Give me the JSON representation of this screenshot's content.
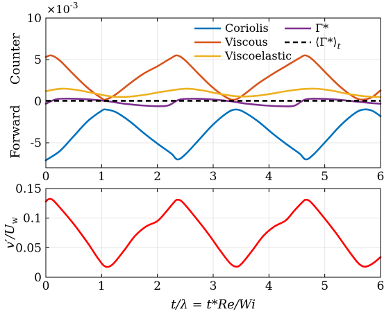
{
  "chart_data": [
    {
      "type": "line",
      "exponent_base": "×10",
      "exponent_power": "-3",
      "ylabel_top": "Counter",
      "ylabel_bottom": "Forward",
      "xlim": [
        0,
        6
      ],
      "ylim": [
        -8,
        10
      ],
      "xticks": [
        "0",
        "1",
        "2",
        "3",
        "4",
        "5",
        "6"
      ],
      "yticks": [
        {
          "v": 10,
          "t": "10"
        },
        {
          "v": 5,
          "t": "5"
        },
        {
          "v": 0,
          "t": "0"
        },
        {
          "v": -5,
          "t": "-5"
        }
      ],
      "grid": true,
      "legend_position": "top-right",
      "series": [
        {
          "name": "Coriolis",
          "color": "#0072BD",
          "style": "solid",
          "x": [
            0,
            0.25,
            0.5,
            0.75,
            1.0,
            1.07,
            1.25,
            1.5,
            1.75,
            2.0,
            2.25,
            2.36,
            2.5,
            2.75,
            3.0,
            3.25,
            3.4,
            3.55,
            3.8,
            4.05,
            4.3,
            4.55,
            4.66,
            4.8,
            5.05,
            5.3,
            5.55,
            5.7,
            5.85,
            6.0
          ],
          "y": [
            -7.1,
            -6.0,
            -4.2,
            -2.4,
            -1.15,
            -1.0,
            -1.3,
            -2.4,
            -3.8,
            -5.1,
            -6.3,
            -7.0,
            -6.4,
            -4.6,
            -2.8,
            -1.4,
            -1.0,
            -1.3,
            -2.4,
            -3.8,
            -5.1,
            -6.3,
            -7.0,
            -6.4,
            -4.6,
            -2.8,
            -1.4,
            -1.0,
            -1.15,
            -1.8
          ]
        },
        {
          "name": "Viscous",
          "color": "#D95319",
          "style": "solid",
          "x": [
            0,
            0.1,
            0.25,
            0.5,
            0.75,
            1.0,
            1.07,
            1.25,
            1.5,
            1.75,
            2.0,
            2.25,
            2.36,
            2.5,
            2.75,
            3.0,
            3.25,
            3.4,
            3.55,
            3.8,
            4.05,
            4.3,
            4.55,
            4.66,
            4.8,
            5.05,
            5.3,
            5.55,
            5.7,
            5.85,
            6.0
          ],
          "y": [
            5.3,
            5.5,
            4.9,
            3.2,
            1.6,
            0.35,
            0.2,
            0.8,
            2.1,
            3.3,
            4.2,
            5.2,
            5.5,
            4.9,
            3.2,
            1.6,
            0.4,
            0.2,
            0.8,
            2.1,
            3.2,
            4.2,
            5.2,
            5.5,
            4.9,
            3.2,
            1.6,
            0.4,
            0.2,
            0.5,
            1.3
          ]
        },
        {
          "name": "Viscoelastic",
          "color": "#EDB120",
          "style": "solid",
          "x": [
            0,
            0.2,
            0.35,
            0.6,
            0.9,
            1.2,
            1.5,
            1.8,
            2.1,
            2.5,
            2.8,
            3.1,
            3.4,
            3.7,
            4.0,
            4.3,
            4.6,
            4.85,
            5.1,
            5.4,
            5.7,
            6.0
          ],
          "y": [
            1.2,
            1.45,
            1.5,
            1.3,
            0.9,
            0.55,
            0.55,
            0.8,
            1.15,
            1.5,
            1.3,
            0.9,
            0.6,
            0.6,
            0.85,
            1.2,
            1.45,
            1.5,
            1.3,
            0.9,
            0.6,
            0.5
          ]
        },
        {
          "name": "Γ*",
          "color": "#7E2F8E",
          "style": "solid",
          "x": [
            0,
            0.2,
            0.5,
            0.8,
            1.1,
            1.4,
            1.7,
            2.0,
            2.2,
            2.4,
            2.7,
            3.0,
            3.3,
            3.6,
            3.9,
            4.2,
            4.45,
            4.65,
            4.9,
            5.2,
            5.5,
            5.8,
            6.0
          ],
          "y": [
            -0.3,
            0.25,
            0.3,
            0.2,
            0.0,
            -0.3,
            -0.5,
            -0.6,
            -0.5,
            0.2,
            0.3,
            0.2,
            0.0,
            -0.3,
            -0.5,
            -0.6,
            -0.55,
            0.2,
            0.3,
            0.2,
            0.0,
            -0.2,
            -0.3
          ]
        },
        {
          "name": "⟨Γ*⟩",
          "name_sub": "t",
          "color": "#000000",
          "style": "dashed",
          "x": [
            0,
            6
          ],
          "y": [
            0.05,
            0.05
          ]
        }
      ]
    },
    {
      "type": "line",
      "xlabel": "t/λ = t*Re/Wi",
      "ylabel": "v′/U",
      "ylabel_sub": "w",
      "xlim": [
        0,
        6
      ],
      "ylim": [
        0,
        0.15
      ],
      "xticks": [
        "0",
        "1",
        "2",
        "3",
        "4",
        "5",
        "6"
      ],
      "yticks": [
        {
          "v": 0.15,
          "t": "0.15"
        },
        {
          "v": 0.1,
          "t": "0.1"
        },
        {
          "v": 0.05,
          "t": "0.05"
        },
        {
          "v": 0,
          "t": "0"
        }
      ],
      "grid": true,
      "series": [
        {
          "color": "#FF0000",
          "style": "solid",
          "x": [
            0,
            0.05,
            0.12,
            0.25,
            0.5,
            0.75,
            0.95,
            1.07,
            1.2,
            1.4,
            1.6,
            1.8,
            2.0,
            2.15,
            2.3,
            2.36,
            2.45,
            2.65,
            2.9,
            3.15,
            3.3,
            3.4,
            3.5,
            3.7,
            3.9,
            4.1,
            4.3,
            4.45,
            4.6,
            4.66,
            4.75,
            4.95,
            5.2,
            5.45,
            5.6,
            5.7,
            5.8,
            5.9,
            6.0
          ],
          "y": [
            0.128,
            0.132,
            0.131,
            0.118,
            0.09,
            0.058,
            0.03,
            0.018,
            0.022,
            0.045,
            0.07,
            0.086,
            0.095,
            0.11,
            0.127,
            0.131,
            0.127,
            0.105,
            0.075,
            0.042,
            0.024,
            0.018,
            0.022,
            0.045,
            0.07,
            0.086,
            0.096,
            0.112,
            0.127,
            0.131,
            0.127,
            0.105,
            0.075,
            0.042,
            0.024,
            0.018,
            0.02,
            0.026,
            0.034
          ]
        }
      ]
    }
  ]
}
